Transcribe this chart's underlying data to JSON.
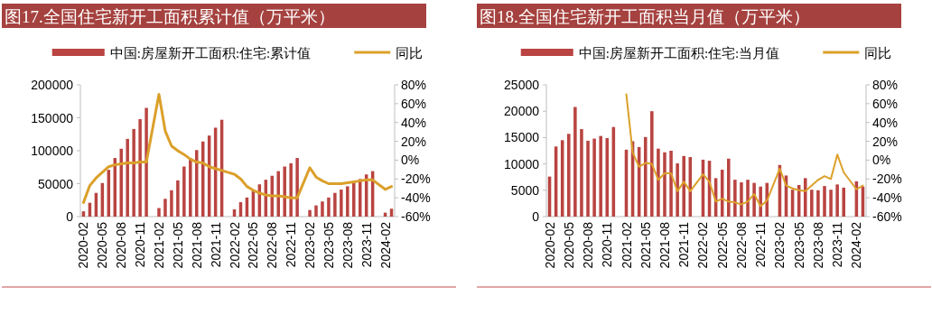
{
  "chart_data": [
    {
      "type": "bar",
      "title": "图17.全国住宅新开工面积累计值（万平米）",
      "legend": "top",
      "categories": [
        "2020-02",
        null,
        null,
        "2020-05",
        null,
        null,
        "2020-08",
        null,
        null,
        "2020-11",
        null,
        null,
        "2021-02",
        null,
        null,
        "2021-05",
        null,
        null,
        "2021-08",
        null,
        null,
        "2021-11",
        null,
        null,
        "2022-02",
        null,
        null,
        "2022-05",
        null,
        null,
        "2022-08",
        null,
        null,
        "2022-11",
        null,
        null,
        "2023-02",
        null,
        null,
        "2023-05",
        null,
        null,
        "2023-08",
        null,
        null,
        "2023-11",
        null,
        null,
        "2024-02",
        null
      ],
      "series": [
        {
          "name": "中国:房屋新开工面积:住宅:累计值",
          "color": "#b94441",
          "values": [
            8000,
            21000,
            36000,
            51000,
            71000,
            89000,
            103000,
            118000,
            133000,
            148000,
            165000,
            null,
            13000,
            27000,
            40000,
            55000,
            76000,
            89000,
            101000,
            114000,
            123000,
            135000,
            147000,
            null,
            11000,
            22000,
            29000,
            39000,
            49000,
            56000,
            62000,
            69000,
            76000,
            81000,
            89000,
            null,
            10000,
            17000,
            23000,
            29000,
            36000,
            41000,
            46000,
            51000,
            57000,
            64000,
            69000,
            null,
            6000,
            12000
          ]
        },
        {
          "name": "同比",
          "type": "line",
          "axis": "y2",
          "color": "#dba02a",
          "values": [
            -45,
            -27,
            -19,
            -13,
            -7,
            -5,
            -4,
            -3,
            -3,
            -2,
            -2,
            null,
            70,
            31,
            15,
            10,
            6,
            1,
            -2,
            -3,
            -7,
            -9,
            -11,
            null,
            -15,
            -20,
            -28,
            -32,
            -35,
            -37,
            -38,
            -38,
            -39,
            -40,
            -40,
            null,
            -8,
            -18,
            -22,
            -25,
            -25,
            -25,
            -24,
            -23,
            -22,
            -21,
            -21,
            null,
            -31,
            -28
          ]
        }
      ],
      "ylim": [
        0,
        200000
      ],
      "yticks": [
        0,
        50000,
        100000,
        150000,
        200000
      ],
      "y2lim": [
        -60,
        80
      ],
      "y2ticks": [
        {
          "value": -60,
          "label": "-60%"
        },
        {
          "value": -40,
          "label": "-40%"
        },
        {
          "value": -20,
          "label": "-20%"
        },
        {
          "value": 0,
          "label": "0%"
        },
        {
          "value": 20,
          "label": "20%"
        },
        {
          "value": 40,
          "label": "40%"
        },
        {
          "value": 60,
          "label": "60%"
        },
        {
          "value": 80,
          "label": "80%"
        }
      ]
    },
    {
      "type": "bar",
      "title": "图18.全国住宅新开工面积当月值（万平米）",
      "legend": "top",
      "categories": [
        "2020-02",
        null,
        null,
        "2020-05",
        null,
        null,
        "2020-08",
        null,
        null,
        "2020-11",
        null,
        null,
        "2021-02",
        null,
        null,
        "2021-05",
        null,
        null,
        "2021-08",
        null,
        null,
        "2021-11",
        null,
        null,
        "2022-02",
        null,
        null,
        "2022-05",
        null,
        null,
        "2022-08",
        null,
        null,
        "2022-11",
        null,
        null,
        "2023-02",
        null,
        null,
        "2023-05",
        null,
        null,
        "2023-08",
        null,
        null,
        "2023-11",
        null,
        null,
        "2024-02",
        null
      ],
      "series": [
        {
          "name": "中国:房屋新开工面积:住宅:当月值",
          "color": "#b94441",
          "values": [
            7600,
            13300,
            14500,
            15700,
            20800,
            16600,
            14400,
            14800,
            15300,
            14900,
            17000,
            null,
            12700,
            14300,
            13200,
            15100,
            20000,
            12900,
            12200,
            12500,
            10100,
            11500,
            11300,
            null,
            10800,
            10600,
            7300,
            8900,
            11000,
            7000,
            6500,
            7000,
            6400,
            5700,
            6400,
            null,
            9800,
            7800,
            5100,
            6000,
            7300,
            5100,
            5000,
            5800,
            5100,
            6100,
            5500,
            null,
            6700,
            5700
          ]
        },
        {
          "name": "同比",
          "type": "line",
          "axis": "y2",
          "color": "#dba02a",
          "values": [
            null,
            null,
            null,
            null,
            null,
            null,
            null,
            null,
            null,
            null,
            null,
            null,
            70,
            8,
            -7,
            -3,
            -4,
            -21,
            -14,
            -14,
            -33,
            -23,
            -33,
            null,
            -15,
            -23,
            -44,
            -41,
            -44,
            -45,
            -47,
            -44,
            -36,
            -49,
            -43,
            null,
            -9,
            -27,
            -30,
            -32,
            -33,
            -27,
            -21,
            -17,
            -20,
            6,
            -13,
            null,
            -31,
            -27
          ]
        }
      ],
      "ylim": [
        0,
        25000
      ],
      "yticks": [
        0,
        5000,
        10000,
        15000,
        20000,
        25000
      ],
      "y2lim": [
        -60,
        80
      ],
      "y2ticks": [
        {
          "value": -60,
          "label": "-60%"
        },
        {
          "value": -40,
          "label": "-40%"
        },
        {
          "value": -20,
          "label": "-20%"
        },
        {
          "value": 0,
          "label": "0%"
        },
        {
          "value": 20,
          "label": "20%"
        },
        {
          "value": 40,
          "label": "40%"
        },
        {
          "value": 60,
          "label": "60%"
        },
        {
          "value": 80,
          "label": "80%"
        }
      ]
    }
  ]
}
